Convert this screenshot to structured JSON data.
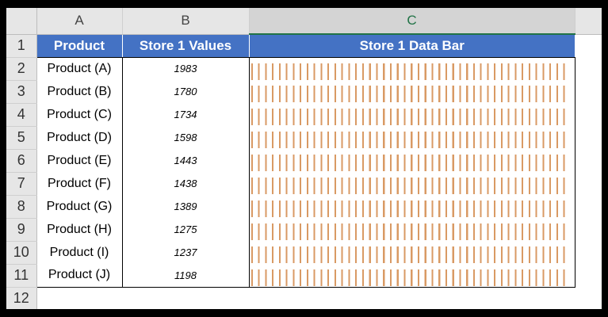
{
  "columns": [
    "A",
    "B",
    "C"
  ],
  "selected_column": "C",
  "row_numbers": [
    "1",
    "2",
    "3",
    "4",
    "5",
    "6",
    "7",
    "8",
    "9",
    "10",
    "11",
    "12"
  ],
  "header": {
    "product": "Product",
    "values": "Store 1 Values",
    "databar": "Store 1 Data Bar"
  },
  "rows": [
    {
      "product": "Product (A)",
      "value": "1983"
    },
    {
      "product": "Product (B)",
      "value": "1780"
    },
    {
      "product": "Product (C)",
      "value": "1734"
    },
    {
      "product": "Product (D)",
      "value": "1598"
    },
    {
      "product": "Product (E)",
      "value": "1443"
    },
    {
      "product": "Product (F)",
      "value": "1438"
    },
    {
      "product": "Product (G)",
      "value": "1389"
    },
    {
      "product": "Product (H)",
      "value": "1275"
    },
    {
      "product": "Product (I)",
      "value": "1237"
    },
    {
      "product": "Product (J)",
      "value": "1198"
    }
  ],
  "colors": {
    "header_fill": "#4472c4",
    "bar_color": "#d99a64",
    "selected_column_accent": "#217346"
  }
}
